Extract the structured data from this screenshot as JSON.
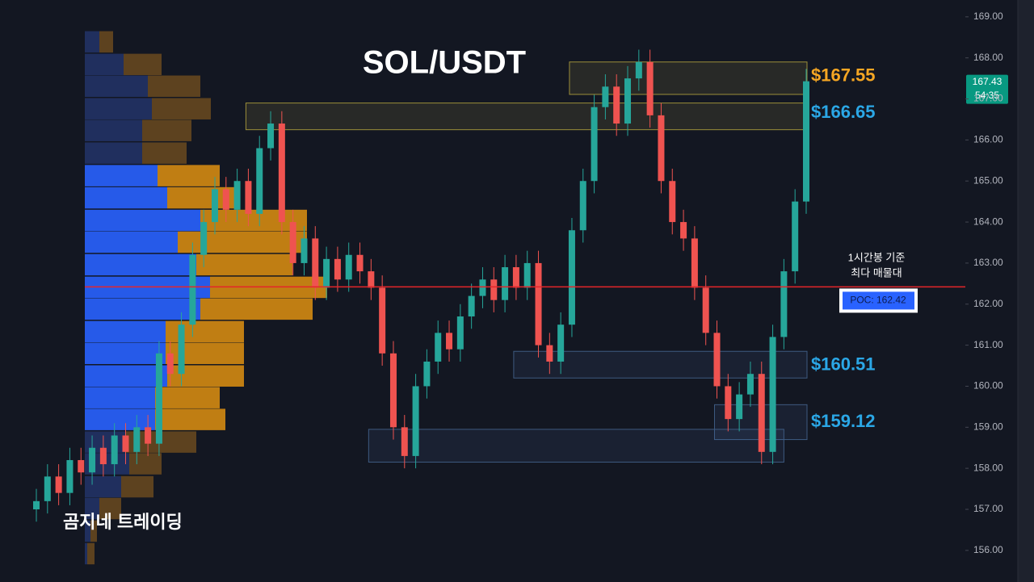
{
  "chart_data": {
    "type": "candlestick",
    "title": "SOL/USDT",
    "watermark": "곰지네 트레이딩",
    "open": [
      157.0,
      157.2,
      157.8,
      157.4,
      158.2,
      157.9,
      158.5,
      158.1,
      158.8,
      158.4,
      159.0,
      158.6,
      160.8,
      160.3,
      161.5,
      163.2,
      164.0,
      164.8,
      164.3,
      165.0,
      164.2,
      165.8,
      166.4,
      164.0,
      163.0,
      163.6,
      162.4,
      163.1,
      162.6,
      163.2,
      162.8,
      162.4,
      160.8,
      159.0,
      158.3,
      160.0,
      160.6,
      161.3,
      160.9,
      161.7,
      162.2,
      162.6,
      162.1,
      162.9,
      162.4,
      163.0,
      161.0,
      160.6,
      161.5,
      163.8,
      165.0,
      166.8,
      167.3,
      166.4,
      167.5,
      167.9,
      166.6,
      165.0,
      164.0,
      163.6,
      162.4,
      161.3,
      160.0,
      159.2,
      159.8,
      160.3,
      158.4,
      161.2,
      162.8,
      164.5
    ],
    "high": [
      157.5,
      158.1,
      158.1,
      158.5,
      158.5,
      158.8,
      158.8,
      159.1,
      159.1,
      159.3,
      159.3,
      161.1,
      161.1,
      161.8,
      163.5,
      164.3,
      165.1,
      165.1,
      165.3,
      165.3,
      166.1,
      166.7,
      166.7,
      164.3,
      163.9,
      163.9,
      163.4,
      163.4,
      163.5,
      163.5,
      163.1,
      162.7,
      161.1,
      159.3,
      160.3,
      160.9,
      161.6,
      161.6,
      162.0,
      162.5,
      162.9,
      162.9,
      163.2,
      163.2,
      163.3,
      163.3,
      161.3,
      161.8,
      164.1,
      165.3,
      167.1,
      167.6,
      167.6,
      167.8,
      168.2,
      168.2,
      166.9,
      165.3,
      164.3,
      163.9,
      162.7,
      161.6,
      160.3,
      160.1,
      160.6,
      160.6,
      161.5,
      163.1,
      164.8,
      167.73
    ],
    "low": [
      156.7,
      156.9,
      157.1,
      157.1,
      157.6,
      157.6,
      157.8,
      157.8,
      158.1,
      158.1,
      158.3,
      158.3,
      160.0,
      160.0,
      161.2,
      162.9,
      163.7,
      164.0,
      164.0,
      163.9,
      163.9,
      165.5,
      163.7,
      162.7,
      162.7,
      162.1,
      162.1,
      162.3,
      162.3,
      162.5,
      162.1,
      160.5,
      158.7,
      158.0,
      158.0,
      159.7,
      160.3,
      160.6,
      160.6,
      161.4,
      161.9,
      161.8,
      161.8,
      162.1,
      162.1,
      160.7,
      160.3,
      160.3,
      161.2,
      163.5,
      164.7,
      166.5,
      166.1,
      166.1,
      167.2,
      166.3,
      164.7,
      163.7,
      163.3,
      162.1,
      161.0,
      159.7,
      158.9,
      158.9,
      159.5,
      158.1,
      158.1,
      160.9,
      162.5,
      164.2
    ],
    "close": [
      157.2,
      157.8,
      157.4,
      158.2,
      157.9,
      158.5,
      158.1,
      158.8,
      158.4,
      159.0,
      158.6,
      160.8,
      160.3,
      161.5,
      163.2,
      164.0,
      164.8,
      164.3,
      165.0,
      164.2,
      165.8,
      166.4,
      164.0,
      163.0,
      163.6,
      162.4,
      163.1,
      162.6,
      163.2,
      162.8,
      162.4,
      160.8,
      159.0,
      158.3,
      160.0,
      160.6,
      161.3,
      160.9,
      161.7,
      162.2,
      162.6,
      162.1,
      162.9,
      162.4,
      163.0,
      161.0,
      160.6,
      161.5,
      163.8,
      165.0,
      166.8,
      167.3,
      166.4,
      167.5,
      167.9,
      166.6,
      165.0,
      164.0,
      163.6,
      162.4,
      161.3,
      160.0,
      159.2,
      159.8,
      160.3,
      158.4,
      161.2,
      162.8,
      164.5,
      167.43
    ],
    "up_color": "#26a69a",
    "down_color": "#ef5350",
    "ylim": [
      155.23,
      169.41
    ],
    "yticks": [
      {
        "value": 169,
        "label": "169.00"
      },
      {
        "value": 168,
        "label": "168.00"
      },
      {
        "value": 167,
        "label": "167.00"
      },
      {
        "value": 166,
        "label": "166.00"
      },
      {
        "value": 165,
        "label": "165.00"
      },
      {
        "value": 164,
        "label": "164.00"
      },
      {
        "value": 163,
        "label": "163.00"
      },
      {
        "value": 162,
        "label": "162.00"
      },
      {
        "value": 161,
        "label": "161.00"
      },
      {
        "value": 160,
        "label": "160.00"
      },
      {
        "value": 159,
        "label": "159.00"
      },
      {
        "value": 158,
        "label": "158.00"
      },
      {
        "value": 157,
        "label": "157.00"
      },
      {
        "value": 156,
        "label": "156.00"
      }
    ],
    "last_price": {
      "value": 167.43,
      "label": "167.43",
      "countdown": "54:35",
      "color": "#089981"
    },
    "poc": {
      "value": 162.42,
      "label": "POC: 162.42",
      "note": [
        "1시간봉 기준",
        "최다 매물대"
      ],
      "color": "#e5252a"
    },
    "zones": [
      {
        "value": 167.55,
        "label": "$167.55",
        "low": 167.11,
        "high": 167.9,
        "start": 48,
        "color": "#f5a623"
      },
      {
        "value": 166.65,
        "label": "$166.65",
        "low": 166.25,
        "high": 166.9,
        "start": 19,
        "color": "#2ba7e6"
      },
      {
        "value": 160.51,
        "label": "$160.51",
        "low": 160.2,
        "high": 160.85,
        "start": 43,
        "color": "#2ba7e6"
      },
      {
        "value": 159.12,
        "label": "$159.12",
        "low": 158.7,
        "high": 159.55,
        "start": 61,
        "color": "#2ba7e6"
      },
      {
        "low": 158.15,
        "high": 158.95,
        "start": 30,
        "end": 67
      }
    ],
    "volume_profile": {
      "levels": [
        168.39,
        167.84,
        167.31,
        166.76,
        166.23,
        165.68,
        165.13,
        164.59,
        164.04,
        163.51,
        162.96,
        162.41,
        161.88,
        161.33,
        160.8,
        160.25,
        159.72,
        159.19,
        158.64,
        158.11,
        157.55,
        157.02,
        156.47,
        155.92
      ],
      "buy": [
        18,
        48,
        78,
        83,
        71,
        71,
        90,
        102,
        143,
        115,
        138,
        155,
        143,
        100,
        100,
        102,
        87,
        87,
        50,
        55,
        45,
        18,
        7,
        3
      ],
      "sell": [
        17,
        47,
        65,
        73,
        61,
        55,
        77,
        89,
        132,
        160,
        119,
        145,
        139,
        97,
        97,
        95,
        80,
        87,
        88,
        40,
        40,
        27,
        8,
        9
      ],
      "value_area": [
        159.19,
        165.13
      ]
    }
  }
}
